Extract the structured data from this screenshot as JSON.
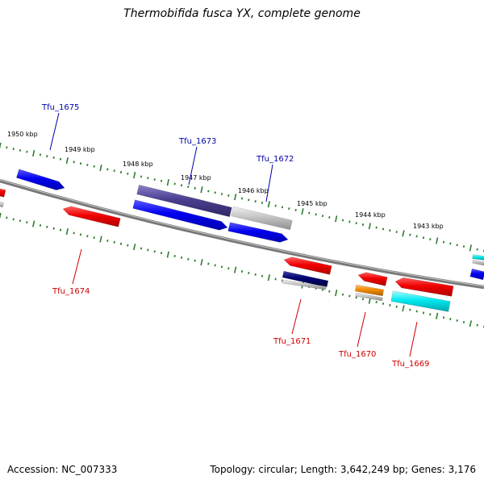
{
  "title": "Thermobifida fusca YX, complete genome",
  "footer": {
    "accession": "Accession: NC_007333",
    "info": "Topology: circular; Length: 3,642,249 bp; Genes: 3,176"
  },
  "colors": {
    "forward_label": "#0000aa",
    "reverse_label": "#cc0000",
    "tick": "#2e7d2e",
    "backbone": "#888888"
  },
  "kbp_labels": [
    "1950 kbp",
    "1949 kbp",
    "1948 kbp",
    "1947 kbp",
    "1946 kbp",
    "1945 kbp",
    "1944 kbp",
    "1943 kbp"
  ],
  "genes": [
    {
      "label": "Tfu_1675",
      "strand": "forward"
    },
    {
      "label": "Tfu_1674",
      "strand": "reverse"
    },
    {
      "label": "Tfu_1673",
      "strand": "forward"
    },
    {
      "label": "Tfu_1672",
      "strand": "forward"
    },
    {
      "label": "Tfu_1671",
      "strand": "reverse"
    },
    {
      "label": "Tfu_1670",
      "strand": "reverse"
    },
    {
      "label": "Tfu_1669",
      "strand": "reverse"
    }
  ]
}
